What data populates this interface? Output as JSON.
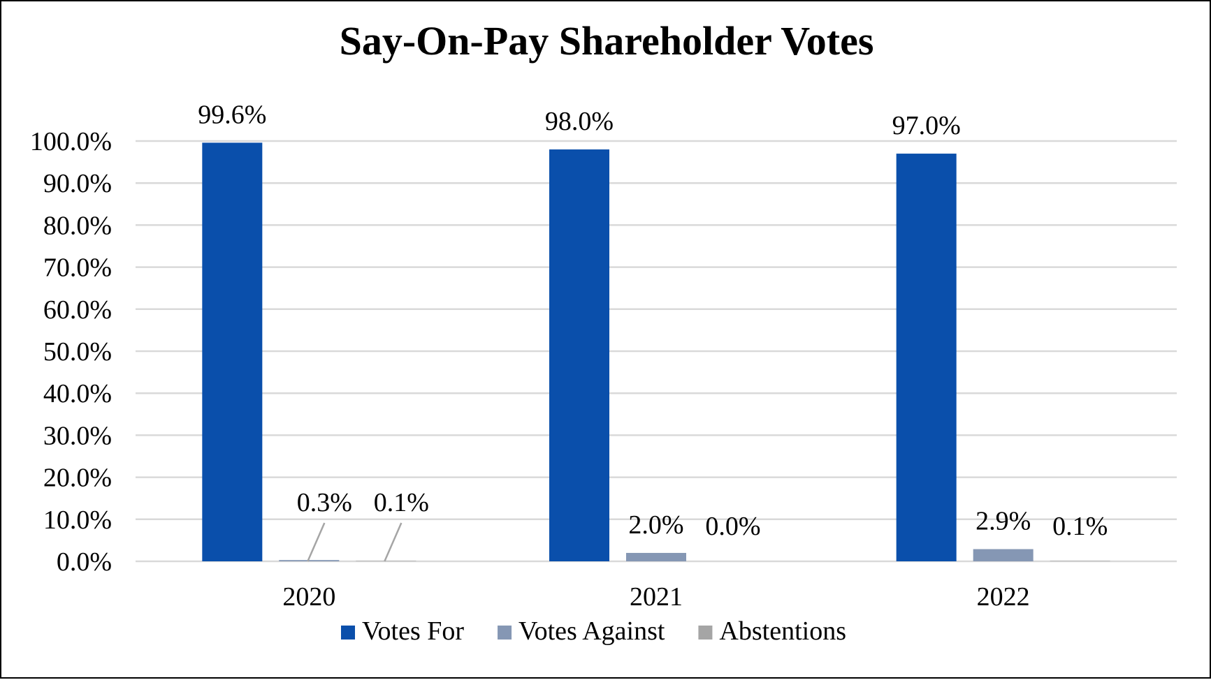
{
  "chart_data": {
    "type": "bar",
    "title": "Say-On-Pay Shareholder Votes",
    "xlabel": "",
    "ylabel": "",
    "categories": [
      "2020",
      "2021",
      "2022"
    ],
    "series": [
      {
        "name": "Votes For",
        "color": "#0a4fab",
        "values": [
          99.6,
          98.0,
          97.0
        ],
        "labels": [
          "99.6%",
          "98.0%",
          "97.0%"
        ]
      },
      {
        "name": "Votes Against",
        "color": "#8597b4",
        "values": [
          0.3,
          2.0,
          2.9
        ],
        "labels": [
          "0.3%",
          "2.0%",
          "2.9%"
        ]
      },
      {
        "name": "Abstentions",
        "color": "#a5a5a5",
        "values": [
          0.1,
          0.0,
          0.1
        ],
        "labels": [
          "0.1%",
          "0.0%",
          "0.1%"
        ]
      }
    ],
    "ylim": [
      0,
      100
    ],
    "yticks": [
      0,
      10,
      20,
      30,
      40,
      50,
      60,
      70,
      80,
      90,
      100
    ],
    "ytick_labels": [
      "0.0%",
      "10.0%",
      "20.0%",
      "30.0%",
      "40.0%",
      "50.0%",
      "60.0%",
      "70.0%",
      "80.0%",
      "90.0%",
      "100.0%"
    ],
    "grid": true,
    "legend": "bottom",
    "gridline_color": "#d9d9d9",
    "leader_line_color": "#a5a5a5"
  }
}
